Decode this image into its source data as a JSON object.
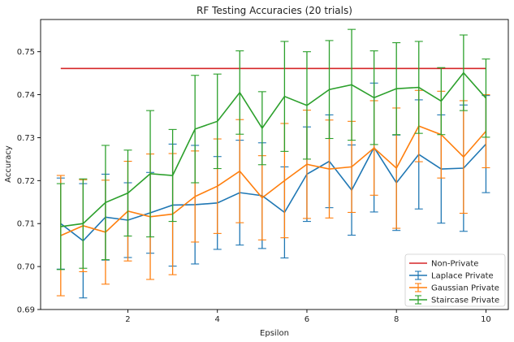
{
  "chart_data": {
    "type": "line",
    "title": "RF Testing Accuracies (20 trials)",
    "xlabel": "Epsilon",
    "ylabel": "Accuracy",
    "xlim": [
      0.05,
      10.5
    ],
    "ylim": [
      0.69,
      0.7575
    ],
    "xticks": [
      2,
      4,
      6,
      8,
      10
    ],
    "xtick_labels": [
      "2",
      "4",
      "6",
      "8",
      "10"
    ],
    "yticks": [
      0.69,
      0.7,
      0.71,
      0.72,
      0.73,
      0.74,
      0.75
    ],
    "ytick_labels": [
      "0.69",
      "0.70",
      "0.71",
      "0.72",
      "0.73",
      "0.74",
      "0.75"
    ],
    "grid": false,
    "legend_position": "lower-right",
    "x": [
      0.5,
      1.0,
      1.5,
      2.0,
      2.5,
      3.0,
      3.5,
      4.0,
      4.5,
      5.0,
      5.5,
      6.0,
      6.5,
      7.0,
      7.5,
      8.0,
      8.5,
      9.0,
      9.5,
      10.0
    ],
    "reference_line": {
      "name": "Non-Private",
      "color": "#d62728",
      "value": 0.7461,
      "x_range": [
        0.5,
        10.0
      ]
    },
    "series": [
      {
        "name": "Laplace Private",
        "color": "#1f77b4",
        "values": [
          0.71,
          0.706,
          0.7115,
          0.7108,
          0.7125,
          0.7143,
          0.7144,
          0.7148,
          0.7172,
          0.7165,
          0.7126,
          0.7215,
          0.7245,
          0.7178,
          0.7277,
          0.7195,
          0.7261,
          0.7227,
          0.7229,
          0.7285
        ],
        "errors": [
          0.0106,
          0.0133,
          0.01,
          0.0087,
          0.0094,
          0.0142,
          0.0138,
          0.0108,
          0.0122,
          0.0123,
          0.0106,
          0.011,
          0.0108,
          0.0105,
          0.015,
          0.0111,
          0.0127,
          0.0126,
          0.0147,
          0.0113
        ]
      },
      {
        "name": "Gaussian Private",
        "color": "#ff7f0e",
        "values": [
          0.7072,
          0.7095,
          0.708,
          0.7129,
          0.7116,
          0.7122,
          0.7163,
          0.7187,
          0.7222,
          0.716,
          0.72,
          0.7238,
          0.7227,
          0.7232,
          0.7276,
          0.7229,
          0.7327,
          0.7307,
          0.7255,
          0.7315
        ],
        "errors": [
          0.014,
          0.0107,
          0.0121,
          0.0116,
          0.0146,
          0.0141,
          0.0106,
          0.011,
          0.012,
          0.0098,
          0.0133,
          0.0126,
          0.0114,
          0.0106,
          0.011,
          0.014,
          0.0083,
          0.0101,
          0.0131,
          0.0085
        ]
      },
      {
        "name": "Staircase Private",
        "color": "#2ca02c",
        "values": [
          0.7093,
          0.71,
          0.7149,
          0.7171,
          0.7216,
          0.7212,
          0.732,
          0.7338,
          0.7405,
          0.7322,
          0.7396,
          0.7375,
          0.7412,
          0.7423,
          0.7393,
          0.7414,
          0.7417,
          0.7385,
          0.7451,
          0.7392
        ],
        "errors": [
          0.01,
          0.0104,
          0.0133,
          0.01,
          0.0147,
          0.0107,
          0.0125,
          0.011,
          0.0097,
          0.0085,
          0.0128,
          0.0125,
          0.0114,
          0.0129,
          0.0109,
          0.0107,
          0.0107,
          0.0078,
          0.0088,
          0.0091
        ]
      }
    ]
  }
}
